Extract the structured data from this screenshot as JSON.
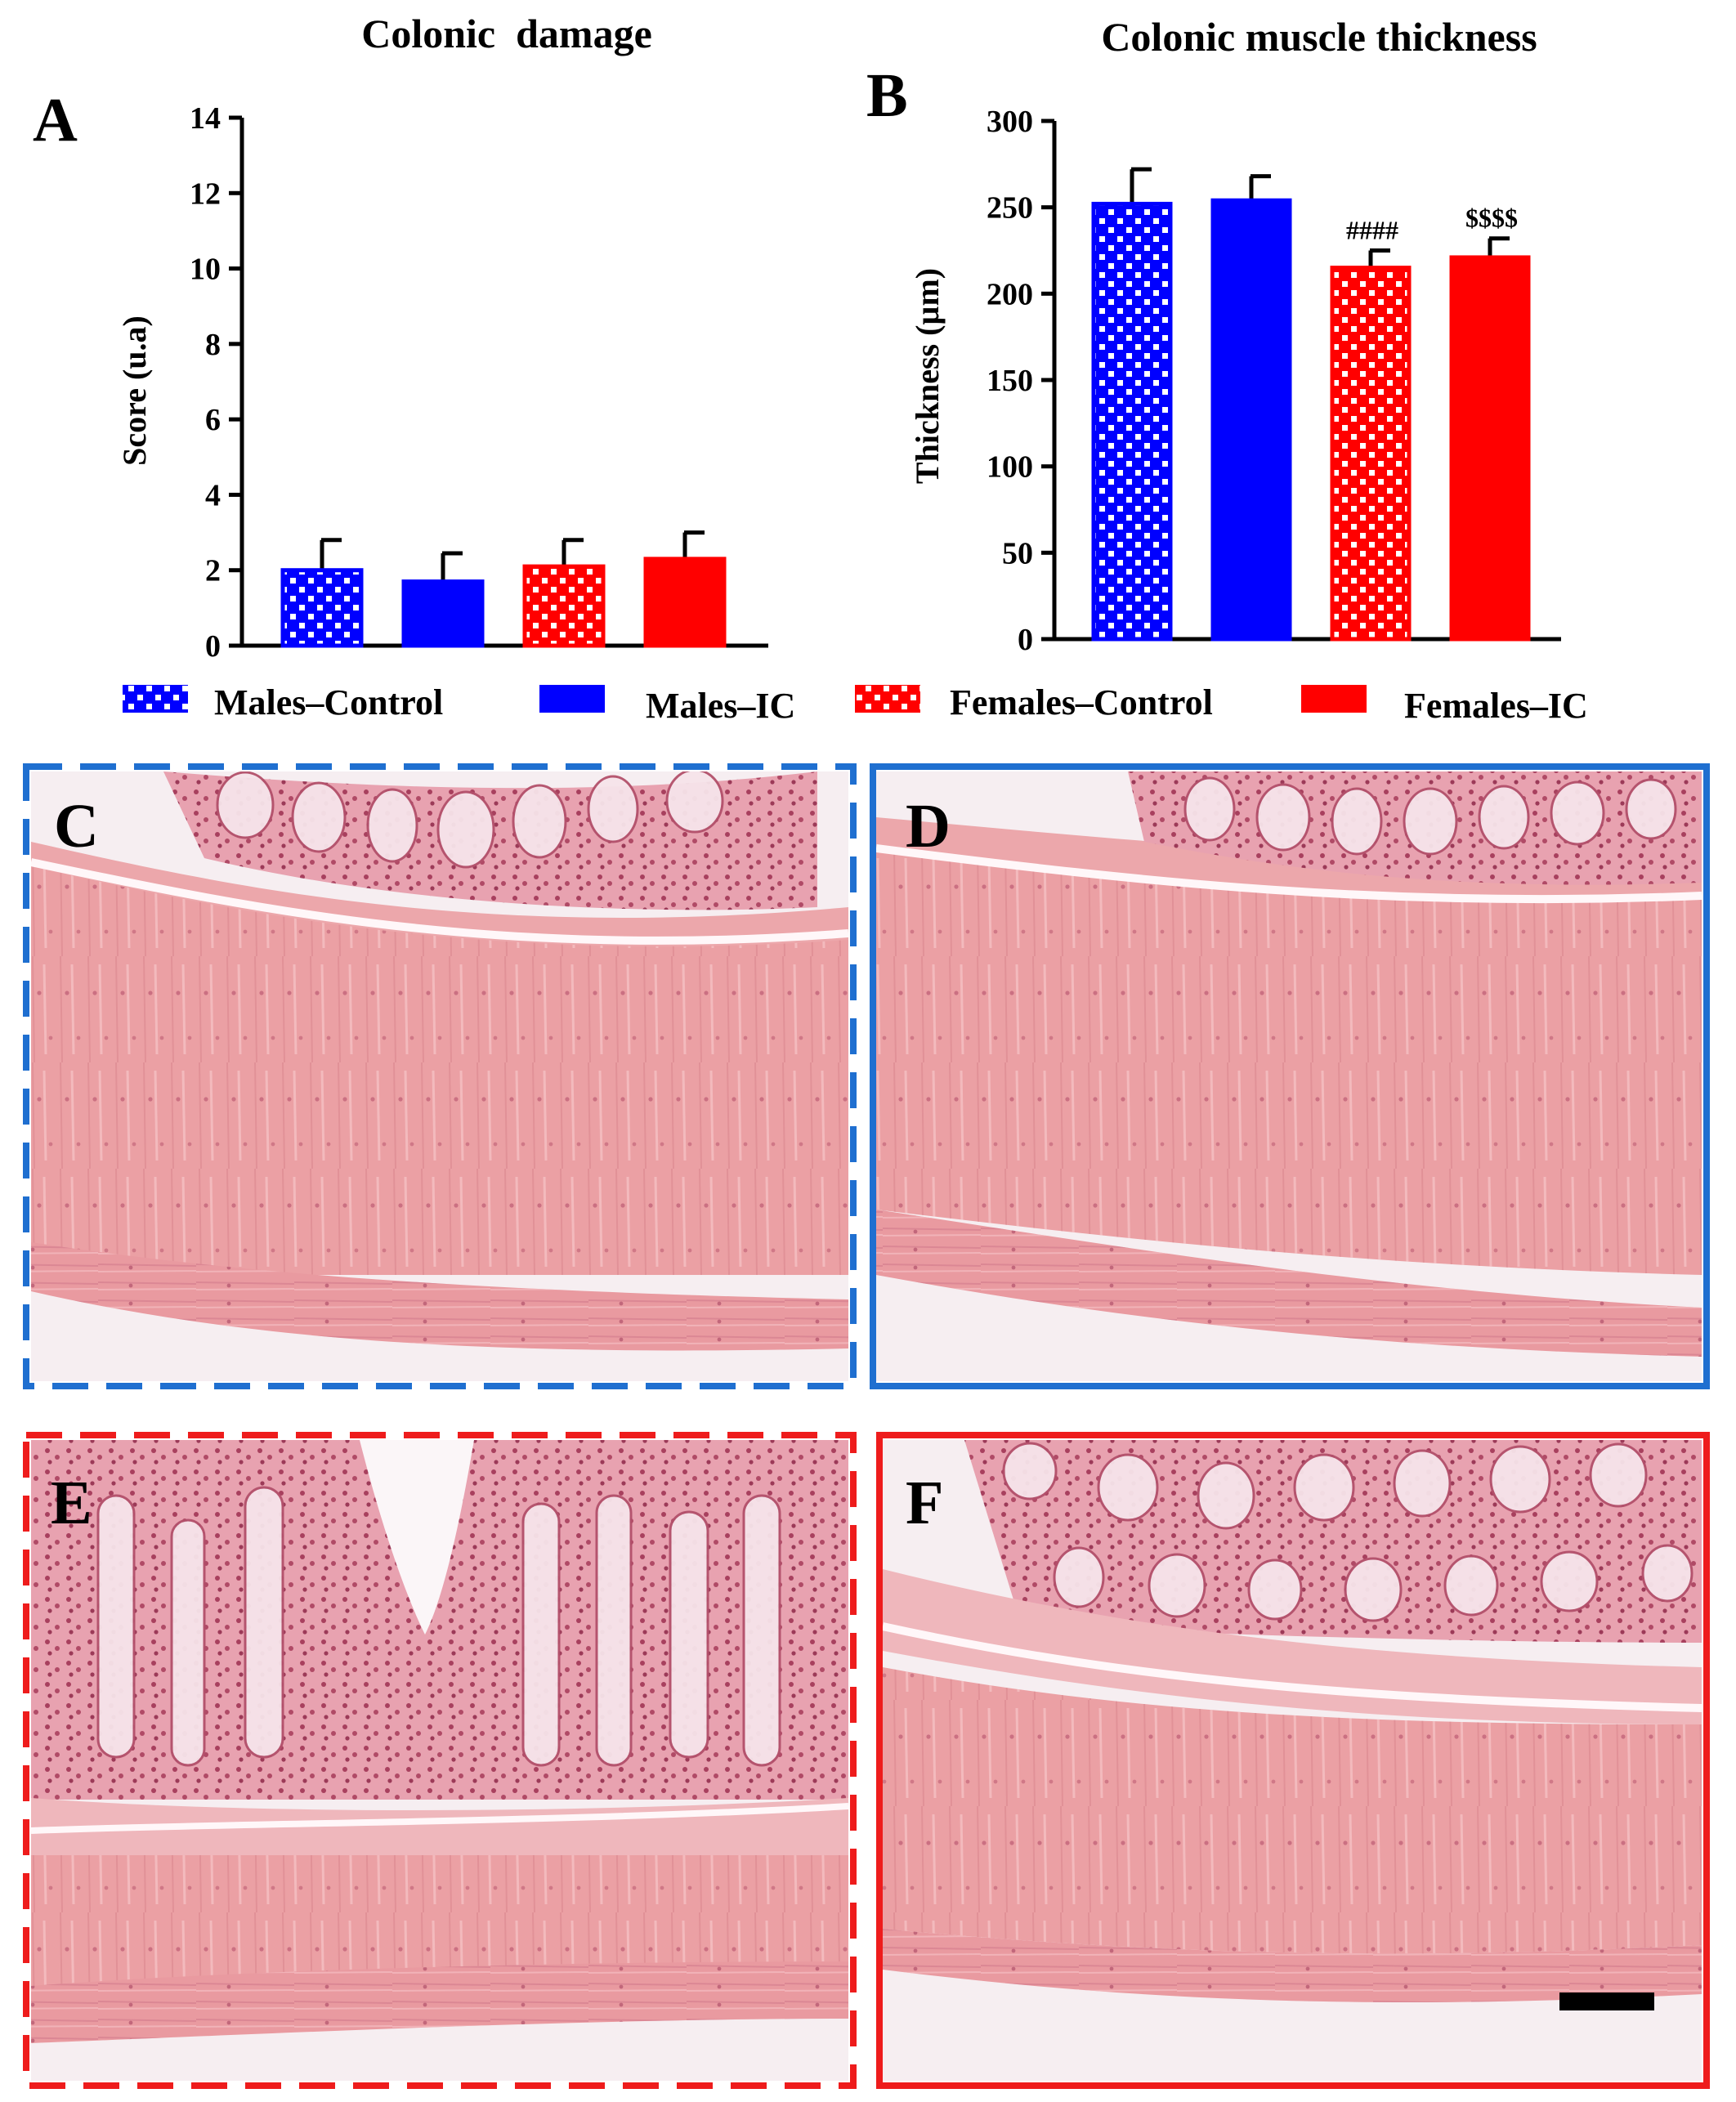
{
  "colors": {
    "male": "#0000ff",
    "female": "#ff0000",
    "frame_blue": "#1f6fd0",
    "frame_red": "#ee1c1c",
    "tissue_muscle": "#eba0a4",
    "tissue_mucosa": "#d98a98",
    "tissue_crypt": "#f4dde4",
    "tissue_background": "#f7f1f3",
    "scale_bar": "#000000"
  },
  "legend": {
    "items": [
      {
        "label": "Males–Control",
        "color": "#0000ff",
        "pattern": "checker"
      },
      {
        "label": "Males–IC",
        "color": "#0000ff",
        "pattern": "solid"
      },
      {
        "label": "Females–Control",
        "color": "#ff0000",
        "pattern": "checker"
      },
      {
        "label": "Females–IC",
        "color": "#ff0000",
        "pattern": "solid"
      }
    ]
  },
  "chart_data": [
    {
      "panel": "A",
      "type": "bar",
      "title": "Colonic  damage",
      "xlabel": "",
      "ylabel": "Score (u.a)",
      "ylim": [
        0,
        14
      ],
      "yticks": [
        0,
        2,
        4,
        6,
        8,
        10,
        12,
        14
      ],
      "grid": false,
      "categories": [
        "Males–Control",
        "Males–IC",
        "Females–Control",
        "Females–IC"
      ],
      "values": [
        2.0,
        1.7,
        2.1,
        2.3
      ],
      "errors": [
        0.8,
        0.75,
        0.7,
        0.7
      ],
      "annotations": [
        "",
        "",
        "",
        ""
      ]
    },
    {
      "panel": "B",
      "type": "bar",
      "title": "Colonic muscle thickness",
      "xlabel": "",
      "ylabel": "Thickness (µm)",
      "ylim": [
        0,
        300
      ],
      "yticks": [
        0,
        50,
        100,
        150,
        200,
        250,
        300
      ],
      "grid": false,
      "categories": [
        "Males–Control",
        "Males–IC",
        "Females–Control",
        "Females–IC"
      ],
      "values": [
        252,
        254,
        215,
        221
      ],
      "errors": [
        20,
        14,
        10,
        11
      ],
      "annotations": [
        "",
        "",
        "####",
        "$$$$"
      ]
    }
  ],
  "micrographs": [
    {
      "letter": "C",
      "frame": "dashed",
      "color": "#1f6fd0"
    },
    {
      "letter": "D",
      "frame": "solid",
      "color": "#1f6fd0"
    },
    {
      "letter": "E",
      "frame": "dashed",
      "color": "#ee1c1c"
    },
    {
      "letter": "F",
      "frame": "solid",
      "color": "#ee1c1c",
      "scale_bar": true
    }
  ]
}
